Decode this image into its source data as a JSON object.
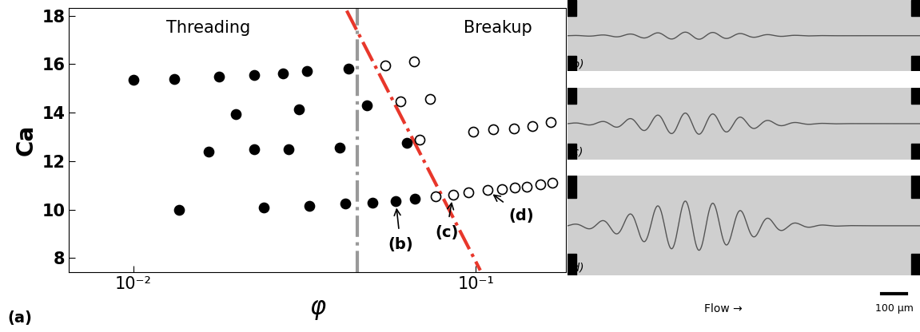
{
  "chart_data": {
    "type": "scatter",
    "xlabel": "φ",
    "ylabel": "Ca",
    "log": "x",
    "xlim": [
      0.0065,
      0.183
    ],
    "ylim": [
      7.42,
      18.3
    ],
    "xticks": [
      {
        "value": 0.01,
        "label": "10⁻²"
      },
      {
        "value": 0.1,
        "label": "10⁻¹"
      }
    ],
    "yticks": [
      8,
      10,
      12,
      14,
      16,
      18
    ],
    "series": [
      {
        "type": "scatter",
        "color": "#000000",
        "marker": "filled circle",
        "x": [
          0.01,
          0.0132,
          0.0178,
          0.0226,
          0.0274,
          0.0321,
          0.0426,
          0.0199,
          0.0305,
          0.048,
          0.0166,
          0.0226,
          0.0284,
          0.04,
          0.0629,
          0.0136,
          0.0241,
          0.0327,
          0.0415,
          0.05,
          0.0584,
          0.0664
        ],
        "y": [
          15.35,
          15.4,
          15.5,
          15.55,
          15.62,
          15.7,
          15.8,
          13.95,
          14.13,
          14.3,
          12.4,
          12.5,
          12.5,
          12.55,
          12.75,
          10.0,
          10.1,
          10.15,
          10.25,
          10.3,
          10.35,
          10.45
        ]
      },
      {
        "type": "scatter",
        "color": "#000000",
        "marker": "open circle",
        "x": [
          0.0545,
          0.0659,
          0.0603,
          0.0734,
          0.0686,
          0.098,
          0.1125,
          0.129,
          0.146,
          0.165,
          0.0762,
          0.0857,
          0.0953,
          0.108,
          0.119,
          0.13,
          0.141,
          0.154,
          0.167
        ],
        "y": [
          15.95,
          16.1,
          14.45,
          14.55,
          12.9,
          13.2,
          13.3,
          13.35,
          13.45,
          13.6,
          10.55,
          10.6,
          10.7,
          10.8,
          10.85,
          10.9,
          10.95,
          11.05,
          11.1
        ]
      },
      {
        "type": "line",
        "color": "#e8372b",
        "line_style": "dashdot",
        "x": [
          0.042,
          0.103
        ],
        "y": [
          18.2,
          7.5
        ]
      },
      {
        "type": "line",
        "color": "#999999",
        "line_style": "dashdot",
        "x": [
          0.045,
          0.045
        ],
        "y": [
          7.42,
          18.3
        ]
      }
    ],
    "annotations": [
      {
        "text": "Threading",
        "x": 0.0166,
        "y": 17.5
      },
      {
        "text": "Breakup",
        "x": 0.116,
        "y": 17.5
      },
      {
        "text": "(b)",
        "x": 0.0603,
        "y": 8.55,
        "point": [
          0.0584,
          10.35
        ]
      },
      {
        "text": "(c)",
        "x": 0.0821,
        "y": 9.04,
        "point": [
          0.0857,
          10.6
        ]
      },
      {
        "text": "(d)",
        "x": 0.136,
        "y": 9.75,
        "point": [
          0.108,
          10.8
        ]
      }
    ]
  },
  "panel_label": "(a)",
  "images": {
    "panels": [
      "(b)",
      "(c)",
      "(d)"
    ],
    "flow_label": "Flow →",
    "scale_bar": "100 μm"
  }
}
